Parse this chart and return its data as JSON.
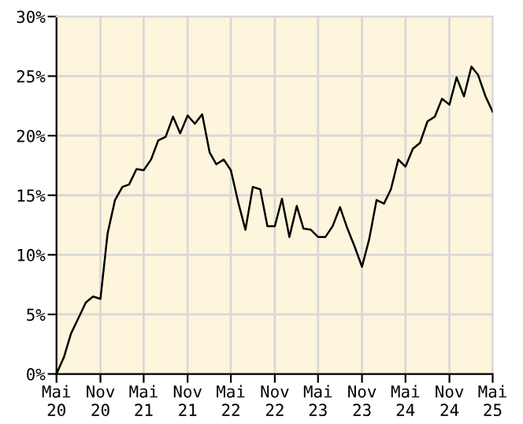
{
  "chart_data": {
    "type": "line",
    "color": "#000000",
    "grid": true,
    "marker": "none",
    "line_style": "solid",
    "legend": false,
    "x": [
      "2020-05",
      "2020-06",
      "2020-07",
      "2020-08",
      "2020-09",
      "2020-10",
      "2020-11",
      "2020-12",
      "2021-01",
      "2021-02",
      "2021-03",
      "2021-04",
      "2021-05",
      "2021-06",
      "2021-07",
      "2021-08",
      "2021-09",
      "2021-10",
      "2021-11",
      "2021-12",
      "2022-01",
      "2022-02",
      "2022-03",
      "2022-04",
      "2022-05",
      "2022-06",
      "2022-07",
      "2022-08",
      "2022-09",
      "2022-10",
      "2022-11",
      "2022-12",
      "2023-01",
      "2023-02",
      "2023-03",
      "2023-04",
      "2023-05",
      "2023-06",
      "2023-07",
      "2023-08",
      "2023-09",
      "2023-10",
      "2023-11",
      "2023-12",
      "2024-01",
      "2024-02",
      "2024-03",
      "2024-04",
      "2024-05",
      "2024-06",
      "2024-07",
      "2024-08",
      "2024-09",
      "2024-10",
      "2024-11",
      "2024-12",
      "2025-01",
      "2025-02",
      "2025-03",
      "2025-04",
      "2025-05"
    ],
    "values": [
      0,
      1.4,
      3.4,
      4.7,
      6.0,
      6.5,
      6.3,
      11.8,
      14.6,
      15.7,
      15.9,
      17.2,
      17.1,
      18.0,
      19.6,
      19.9,
      21.6,
      20.2,
      21.7,
      21.0,
      21.8,
      18.6,
      17.6,
      18.0,
      17.1,
      14.4,
      12.1,
      15.7,
      15.5,
      12.4,
      12.4,
      14.7,
      11.5,
      14.1,
      12.2,
      12.1,
      11.5,
      11.5,
      12.4,
      14.0,
      12.2,
      10.7,
      9.0,
      11.3,
      14.6,
      14.3,
      15.5,
      18.0,
      17.4,
      18.9,
      19.4,
      21.2,
      21.6,
      23.1,
      22.6,
      24.9,
      23.3,
      25.8,
      25.1,
      23.3,
      22.0
    ],
    "xlim": [
      "2020-05",
      "2025-05"
    ],
    "xticks": [
      {
        "value": "2020-05",
        "label": "Mai\n20"
      },
      {
        "value": "2020-11",
        "label": "Nov\n20"
      },
      {
        "value": "2021-05",
        "label": "Mai\n21"
      },
      {
        "value": "2021-11",
        "label": "Nov\n21"
      },
      {
        "value": "2022-05",
        "label": "Mai\n22"
      },
      {
        "value": "2022-11",
        "label": "Nov\n22"
      },
      {
        "value": "2023-05",
        "label": "Mai\n23"
      },
      {
        "value": "2023-11",
        "label": "Nov\n23"
      },
      {
        "value": "2024-05",
        "label": "Mai\n24"
      },
      {
        "value": "2024-11",
        "label": "Nov\n24"
      },
      {
        "value": "2025-05",
        "label": "Mai\n25"
      }
    ],
    "ylim": [
      0,
      30
    ],
    "yticks": [
      {
        "value": 0,
        "label": "0%"
      },
      {
        "value": 5,
        "label": "5%"
      },
      {
        "value": 10,
        "label": "10%"
      },
      {
        "value": 15,
        "label": "15%"
      },
      {
        "value": 20,
        "label": "20%"
      },
      {
        "value": 25,
        "label": "25%"
      },
      {
        "value": 30,
        "label": "30%"
      }
    ]
  }
}
